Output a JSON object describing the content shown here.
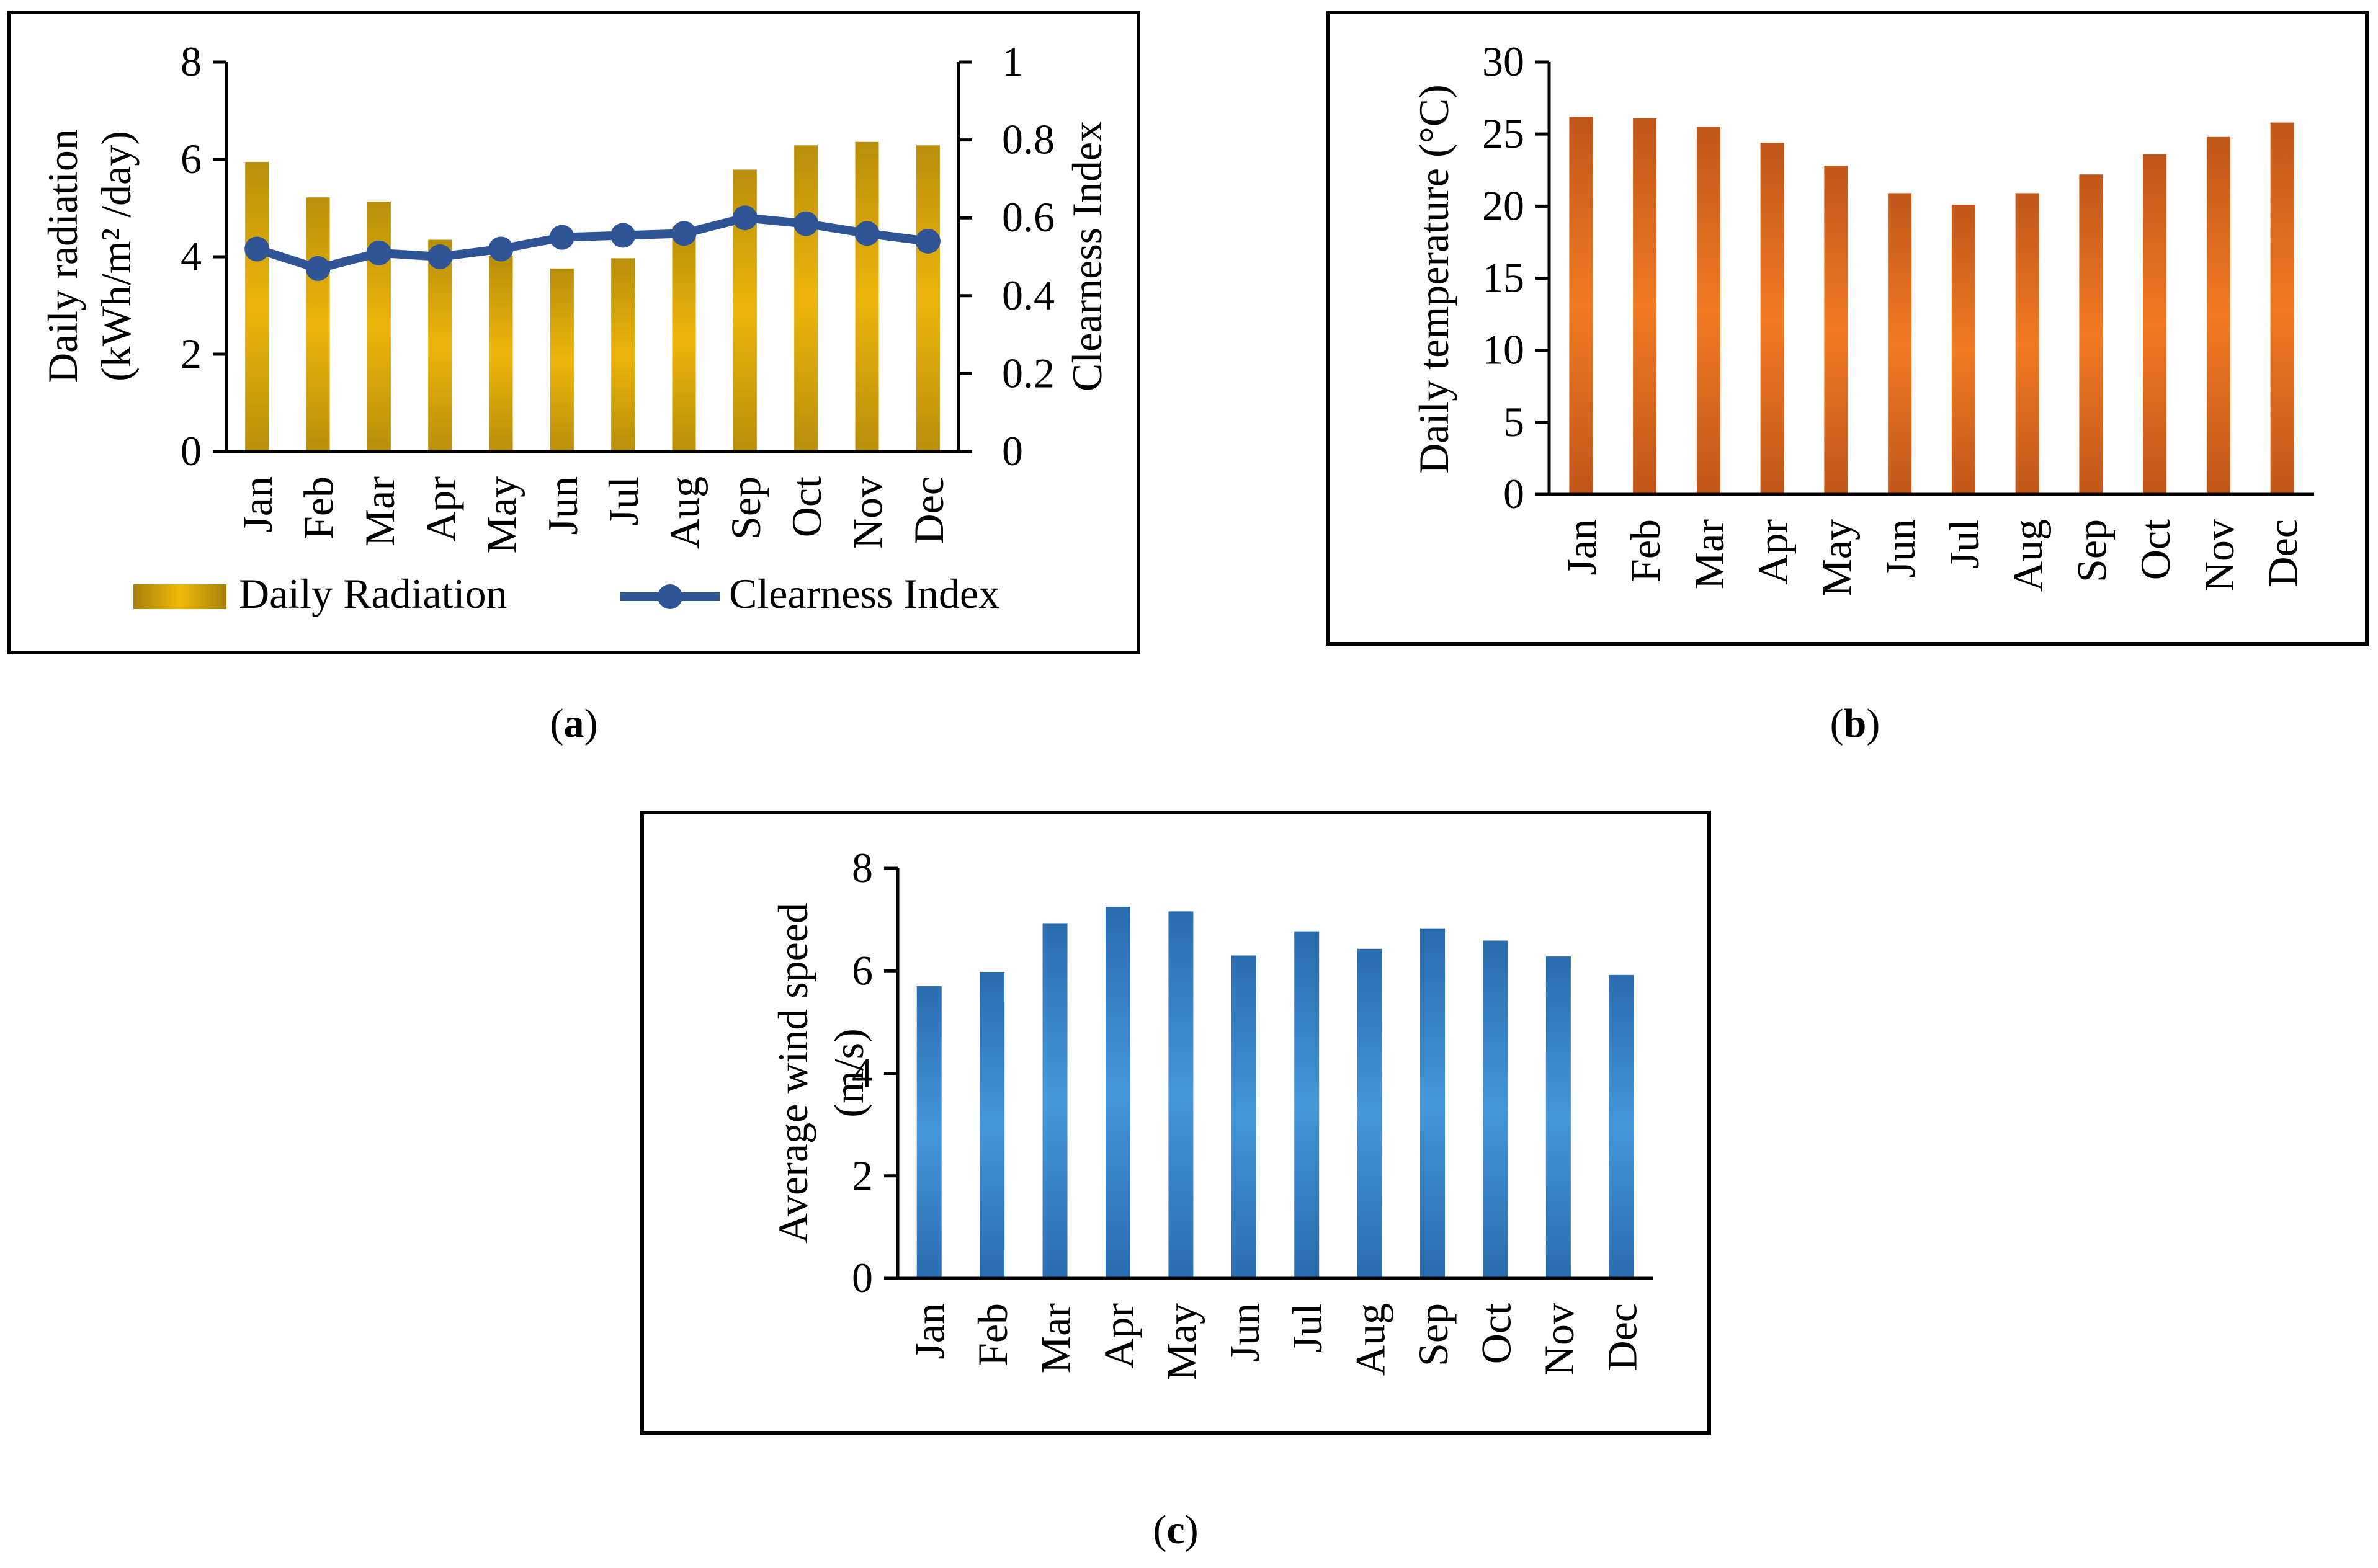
{
  "panels": [
    {
      "caption": "(a)",
      "caption_letter": "a",
      "chart_data": {
        "type": "bar",
        "categories": [
          "Jan",
          "Feb",
          "Mar",
          "Apr",
          "May",
          "Jun",
          "Jul",
          "Aug",
          "Sep",
          "Oct",
          "Nov",
          "Dec"
        ],
        "series": [
          {
            "name": "Daily Radiation",
            "type": "bar",
            "axis": "left",
            "color": "#E3AE09",
            "values": [
              5.95,
              5.22,
              5.13,
              4.35,
              4.02,
              3.76,
              3.97,
              4.62,
              5.79,
              6.29,
              6.36,
              6.29
            ]
          },
          {
            "name": "Clearness Index",
            "type": "line",
            "axis": "right",
            "color": "#2F5597",
            "values": [
              0.52,
              0.47,
              0.51,
              0.5,
              0.52,
              0.55,
              0.555,
              0.56,
              0.6,
              0.585,
              0.56,
              0.54
            ]
          }
        ],
        "ylabel_lines": [
          "Daily radiation",
          "(kWh/m² /day)"
        ],
        "y2label": "Clearness Index",
        "ylim": [
          0,
          8
        ],
        "yticks": [
          "0",
          "2",
          "4",
          "6",
          "8"
        ],
        "y2lim": [
          0,
          1
        ],
        "y2ticks": [
          "0",
          "0.2",
          "0.4",
          "0.6",
          "0.8",
          "1"
        ],
        "legend_position": "bottom",
        "grid": false
      }
    },
    {
      "caption": "(b)",
      "caption_letter": "b",
      "chart_data": {
        "type": "bar",
        "categories": [
          "Jan",
          "Feb",
          "Mar",
          "Apr",
          "May",
          "Jun",
          "Jul",
          "Aug",
          "Sep",
          "Oct",
          "Nov",
          "Dec"
        ],
        "series": [
          {
            "type": "bar",
            "color": "#ED7D22",
            "values": [
              26.2,
              26.1,
              25.5,
              24.4,
              22.8,
              20.9,
              20.1,
              20.9,
              22.2,
              23.6,
              24.8,
              25.8
            ]
          }
        ],
        "ylabel": "Daily temperature (°C)",
        "ylim": [
          0,
          30
        ],
        "yticks": [
          "0",
          "5",
          "10",
          "15",
          "20",
          "25",
          "30"
        ],
        "grid": false
      }
    },
    {
      "caption": "(c)",
      "caption_letter": "c",
      "chart_data": {
        "type": "bar",
        "categories": [
          "Jan",
          "Feb",
          "Mar",
          "Apr",
          "May",
          "Jun",
          "Jul",
          "Aug",
          "Sep",
          "Oct",
          "Nov",
          "Dec"
        ],
        "series": [
          {
            "type": "bar",
            "color": "#3D8AD0",
            "values": [
              5.7,
              5.98,
              6.93,
              7.25,
              7.16,
              6.3,
              6.77,
              6.43,
              6.83,
              6.59,
              6.28,
              5.92
            ]
          }
        ],
        "ylabel_lines": [
          "Average wind speed",
          "(m/s)"
        ],
        "ylim": [
          0,
          8
        ],
        "yticks": [
          "0",
          "2",
          "4",
          "6",
          "8"
        ],
        "grid": false
      }
    }
  ]
}
